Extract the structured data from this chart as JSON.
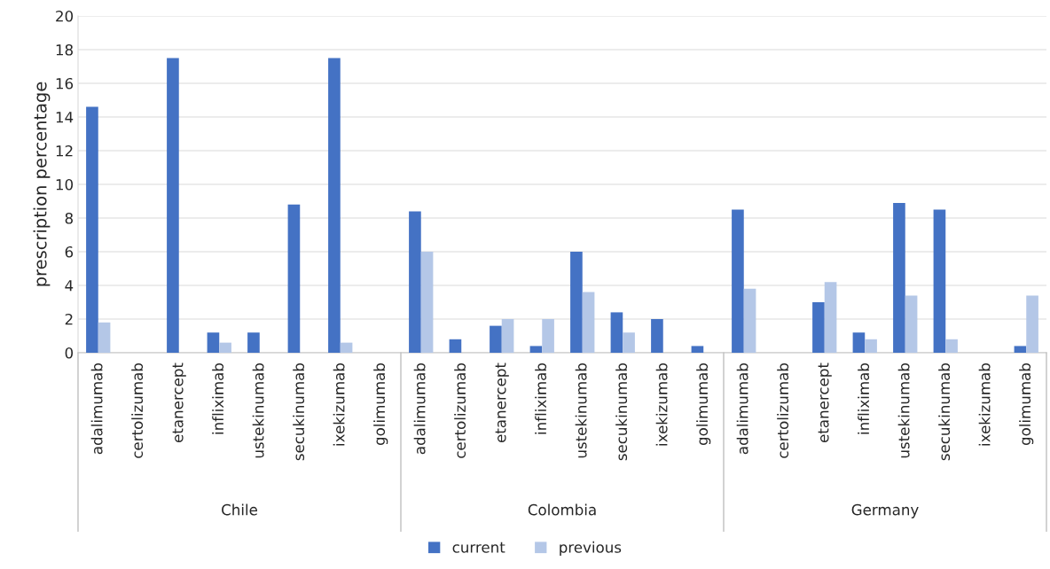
{
  "chart_data": {
    "type": "bar",
    "ylabel": "prescription percentage",
    "categories": [
      "adalimumab",
      "certolizumab",
      "etanercept",
      "infliximab",
      "ustekinumab",
      "secukinumab",
      "ixekizumab",
      "golimumab",
      "adalimumab",
      "certolizumab",
      "etanercept",
      "infliximab",
      "ustekinumab",
      "secukinumab",
      "ixekizumab",
      "golimumab",
      "adalimumab",
      "certolizumab",
      "etanercept",
      "infliximab",
      "ustekinumab",
      "secukinumab",
      "ixekizumab",
      "golimumab"
    ],
    "series": [
      {
        "name": "current",
        "color": "#4472c4",
        "values": [
          14.6,
          0,
          17.5,
          1.2,
          1.2,
          8.8,
          17.5,
          0,
          8.4,
          0.8,
          1.6,
          0.4,
          6.0,
          2.4,
          2.0,
          0.4,
          8.5,
          0,
          3.0,
          1.2,
          8.9,
          8.5,
          0,
          0.4
        ]
      },
      {
        "name": "previous",
        "color": "#b4c7e7",
        "values": [
          1.8,
          0,
          0,
          0.6,
          0,
          0,
          0.6,
          0,
          6.0,
          0,
          2.0,
          2.0,
          3.6,
          1.2,
          0,
          0,
          3.8,
          0,
          4.2,
          0.8,
          3.4,
          0.8,
          0,
          3.4
        ]
      }
    ],
    "annotations": [
      "Chile",
      "Colombia",
      "Germany"
    ],
    "ylim": [
      0,
      20
    ],
    "yticks": [
      0,
      2,
      4,
      6,
      8,
      10,
      12,
      14,
      16,
      18,
      20
    ],
    "grid": "y",
    "legend": "bottom"
  }
}
